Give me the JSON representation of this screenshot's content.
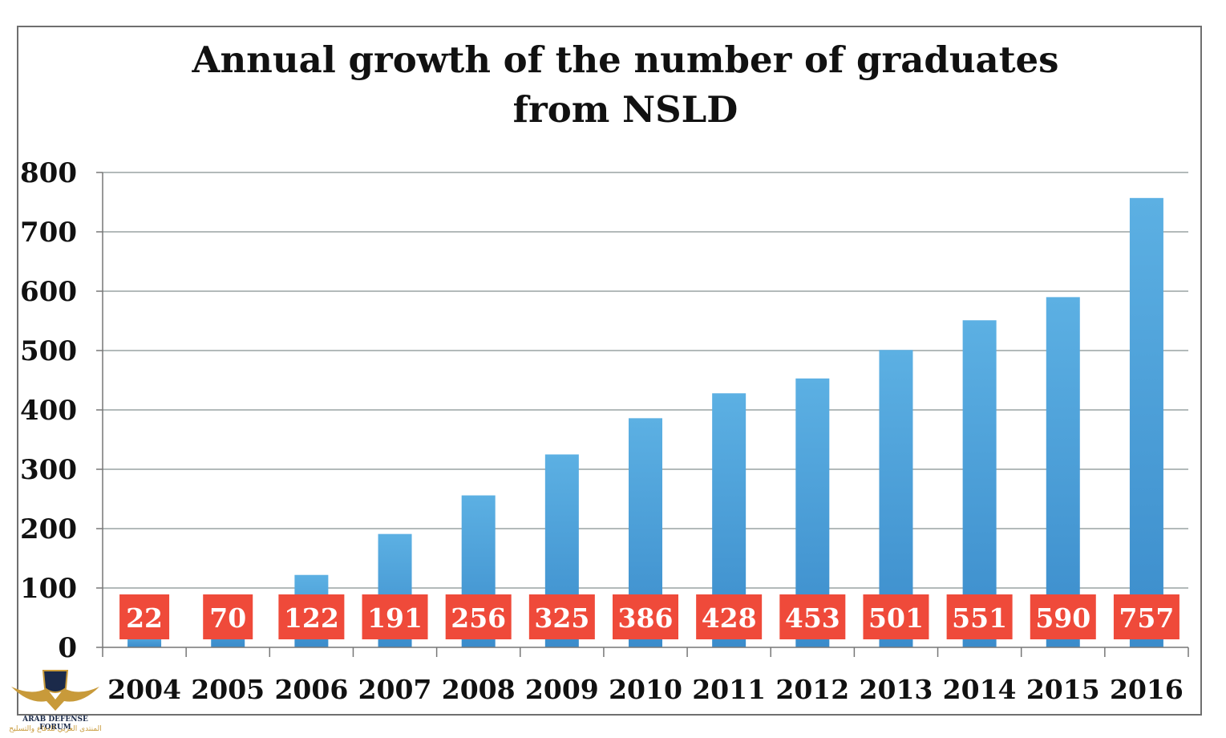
{
  "chart_data": {
    "type": "bar",
    "title": [
      "Annual growth of the number of graduates",
      "from NSLD"
    ],
    "xlabel": "",
    "ylabel": "",
    "categories": [
      "2004",
      "2005",
      "2006",
      "2007",
      "2008",
      "2009",
      "2010",
      "2011",
      "2012",
      "2013",
      "2014",
      "2015",
      "2016"
    ],
    "values": [
      22,
      70,
      122,
      191,
      256,
      325,
      386,
      428,
      453,
      501,
      551,
      590,
      757
    ],
    "ylim": [
      0,
      800
    ],
    "yticks": [
      0,
      100,
      200,
      300,
      400,
      500,
      600,
      700,
      800
    ],
    "grid": true,
    "legend": "none",
    "colors": {
      "bar": "#4a9fd8",
      "bar_dark": "#3b8ccb",
      "label_box": "#ef4a3a",
      "grid": "#9aa3a3"
    }
  },
  "watermark": {
    "text_en": "ARAB DEFENSE FORUM",
    "text_ar": "المنتدى العربي للدفاع والتسليح",
    "logo_text": "DA"
  }
}
